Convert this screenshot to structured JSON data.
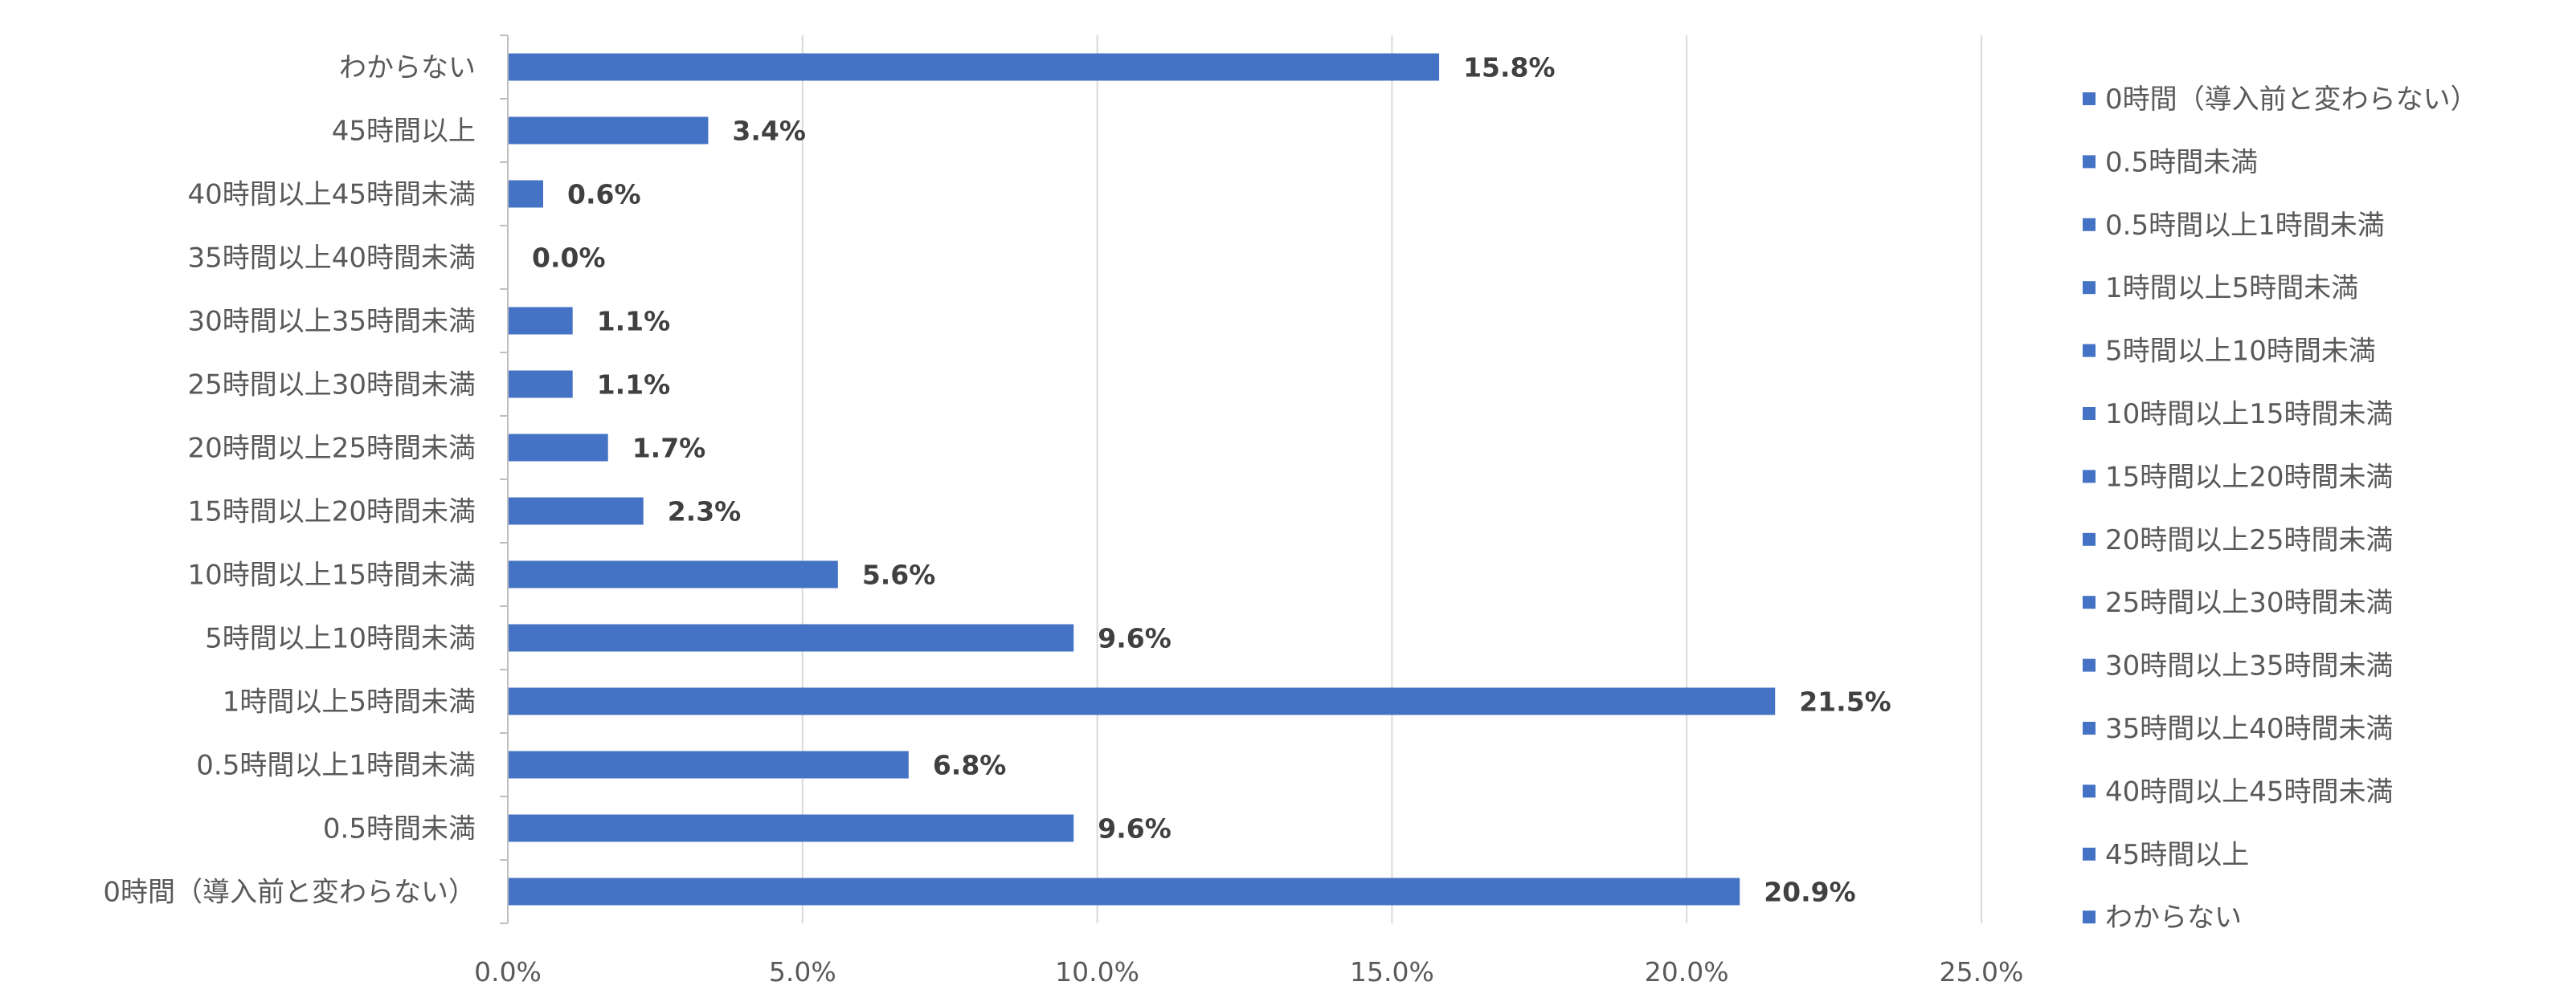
{
  "chart_data": {
    "type": "bar",
    "orientation": "horizontal",
    "categories": [
      "0時間（導入前と変わらない）",
      "0.5時間未満",
      "0.5時間以上1時間未満",
      "1時間以上5時間未満",
      "5時間以上10時間未満",
      "10時間以上15時間未満",
      "15時間以上20時間未満",
      "20時間以上25時間未満",
      "25時間以上30時間未満",
      "30時間以上35時間未満",
      "35時間以上40時間未満",
      "40時間以上45時間未満",
      "45時間以上",
      "わからない"
    ],
    "values": [
      20.9,
      9.6,
      6.8,
      21.5,
      9.6,
      5.6,
      2.3,
      1.7,
      1.1,
      1.1,
      0.0,
      0.6,
      3.4,
      15.8
    ],
    "data_labels": [
      "20.9%",
      "9.6%",
      "6.8%",
      "21.5%",
      "9.6%",
      "5.6%",
      "2.3%",
      "1.7%",
      "1.1%",
      "1.1%",
      "0.0%",
      "0.6%",
      "3.4%",
      "15.8%"
    ],
    "xlim": [
      0,
      25
    ],
    "x_ticks": [
      0,
      5,
      10,
      15,
      20,
      25
    ],
    "x_tick_labels": [
      "0.0%",
      "5.0%",
      "10.0%",
      "15.0%",
      "20.0%",
      "25.0%"
    ],
    "title": "",
    "xlabel": "",
    "ylabel": "",
    "grid": "vertical",
    "legend": {
      "position": "right",
      "entries": [
        "0時間（導入前と変わらない）",
        "0.5時間未満",
        "0.5時間以上1時間未満",
        "1時間以上5時間未満",
        "5時間以上10時間未満",
        "10時間以上15時間未満",
        "15時間以上20時間未満",
        "20時間以上25時間未満",
        "25時間以上30時間未満",
        "30時間以上35時間未満",
        "35時間以上40時間未満",
        "40時間以上45時間未満",
        "45時間以上",
        "わからない"
      ]
    },
    "colors": {
      "bar": "#4472C4",
      "grid": "#D9D9D9",
      "axis": "#BFBFBF",
      "text": "#595959",
      "data_label": "#404040"
    }
  }
}
